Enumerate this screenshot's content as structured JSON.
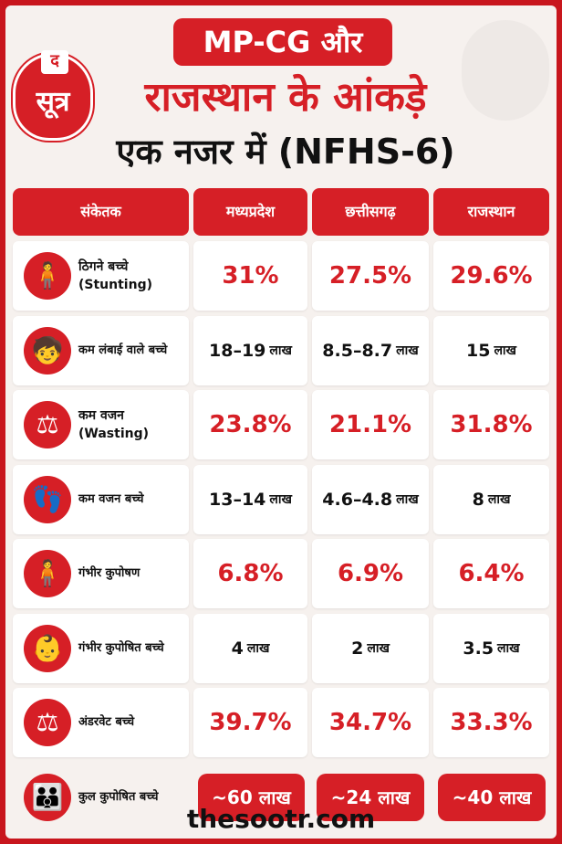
{
  "brand": {
    "logo_mark": "द",
    "logo_text": "सूत्र"
  },
  "header": {
    "line1": "MP-CG और",
    "line2": "राजस्थान के आंकड़े",
    "line3": "एक नजर में (NFHS-6)"
  },
  "table": {
    "columns": [
      "संकेतक",
      "मध्यप्रदेश",
      "छत्तीसगढ़",
      "राजस्थान"
    ],
    "rows": [
      {
        "icon": "child-height-icon",
        "glyph": "🧍",
        "label": "ठिगने बच्चे",
        "label2": "(Stunting)",
        "mp": "31%",
        "cg": "27.5%",
        "rj": "29.6%"
      },
      {
        "icon": "child-icon",
        "glyph": "🧒",
        "label": "कम लंबाई वाले बच्चे",
        "label2": "",
        "mp": "18–19",
        "cg": "8.5–8.7",
        "rj": "15",
        "unit": "लाख"
      },
      {
        "icon": "weighing-scale-icon",
        "glyph": "⚖",
        "label": "कम वजन",
        "label2": "(Wasting)",
        "mp": "23.8%",
        "cg": "21.1%",
        "rj": "31.8%"
      },
      {
        "icon": "footprints-scale-icon",
        "glyph": "👣",
        "label": "कम वजन बच्चे",
        "label2": "",
        "mp": "13–14",
        "cg": "4.6–4.8",
        "rj": "8",
        "unit": "लाख"
      },
      {
        "icon": "thin-child-icon",
        "glyph": "🧍",
        "label": "गंभीर कुपोषण",
        "label2": "",
        "mp": "6.8%",
        "cg": "6.9%",
        "rj": "6.4%"
      },
      {
        "icon": "baby-icon",
        "glyph": "👶",
        "label": "गंभीर कुपोषित बच्चे",
        "label2": "",
        "mp": "4",
        "cg": "2",
        "rj": "3.5",
        "unit": "लाख"
      },
      {
        "icon": "scale-warning-icon",
        "glyph": "⚖",
        "label": "अंडरवेट बच्चे",
        "label2": "",
        "mp": "39.7%",
        "cg": "34.7%",
        "rj": "33.3%"
      }
    ],
    "total": {
      "icon": "children-group-icon",
      "glyph": "👪",
      "label": "कुल कुपोषित बच्चे",
      "mp": "~60 लाख",
      "cg": "~24 लाख",
      "rj": "~40 लाख"
    }
  },
  "footer": {
    "site": "thesootr.com"
  },
  "colors": {
    "accent": "#d61f26",
    "background": "#f6f1ee"
  }
}
